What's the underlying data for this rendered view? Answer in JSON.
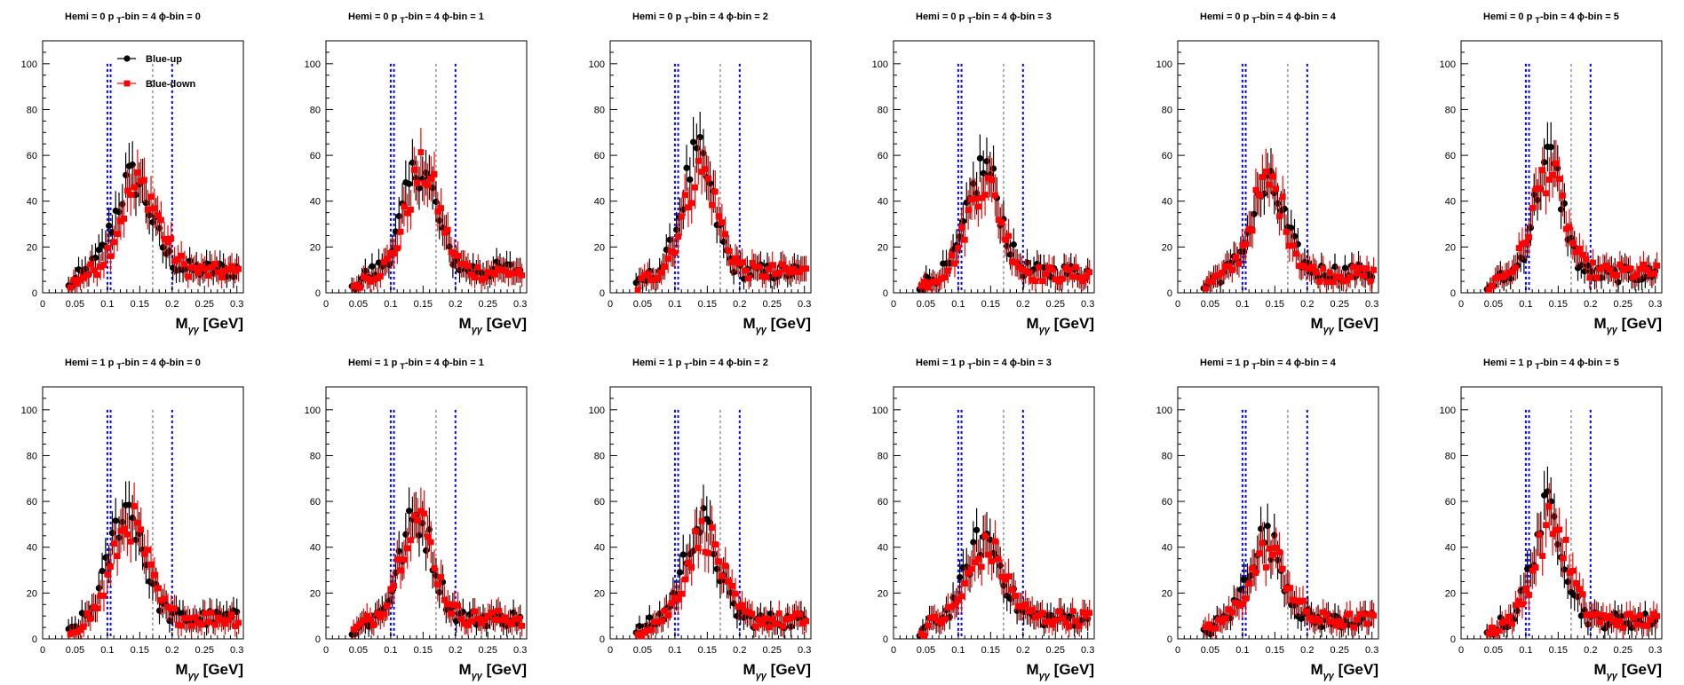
{
  "figure": {
    "x_label_main": "M",
    "x_label_sub": "γγ",
    "x_label_unit": " [GeV]",
    "legend": [
      {
        "name": "Blue-up",
        "marker": "circle",
        "color": "#000000"
      },
      {
        "name": "Blue-down",
        "marker": "square",
        "color": "#ff0000"
      }
    ],
    "grid": false
  },
  "chart_data": [
    {
      "type": "scatter",
      "title": "Hemi = 0 p_T-bin = 4 ϕ-bin = 0",
      "xlim": [
        0,
        0.31
      ],
      "ylim": [
        0,
        110
      ],
      "xticks": [
        "0",
        "0.05",
        "0.1",
        "0.15",
        "0.2",
        "0.25",
        "0.3"
      ],
      "yticks": [
        "0",
        "20",
        "40",
        "60",
        "80",
        "100"
      ],
      "xlabel": "Mγγ [GeV]",
      "vlines": [
        {
          "x": 0.1,
          "color": "blue"
        },
        {
          "x": 0.105,
          "color": "blue"
        },
        {
          "x": 0.17,
          "color": "gray"
        },
        {
          "x": 0.2,
          "color": "blue"
        }
      ],
      "legend": true,
      "series": [
        {
          "name": "Blue-up",
          "peak": 0.14,
          "height": 40,
          "base": 10,
          "width": 0.028
        },
        {
          "name": "Blue-down",
          "peak": 0.15,
          "height": 38,
          "base": 9,
          "width": 0.03
        }
      ]
    },
    {
      "type": "scatter",
      "title": "Hemi = 0 p_T-bin = 4 ϕ-bin = 1",
      "xlim": [
        0,
        0.31
      ],
      "ylim": [
        0,
        110
      ],
      "xticks": [
        "0",
        "0.05",
        "0.1",
        "0.15",
        "0.2",
        "0.25",
        "0.3"
      ],
      "yticks": [
        "0",
        "20",
        "40",
        "60",
        "80",
        "100"
      ],
      "xlabel": "Mγγ [GeV]",
      "vlines": [
        {
          "x": 0.1,
          "color": "blue"
        },
        {
          "x": 0.105,
          "color": "blue"
        },
        {
          "x": 0.17,
          "color": "gray"
        },
        {
          "x": 0.2,
          "color": "blue"
        }
      ],
      "legend": false,
      "series": [
        {
          "name": "Blue-up",
          "peak": 0.145,
          "height": 45,
          "base": 10,
          "width": 0.025
        },
        {
          "name": "Blue-down",
          "peak": 0.15,
          "height": 44,
          "base": 9,
          "width": 0.026
        }
      ]
    },
    {
      "type": "scatter",
      "title": "Hemi = 0 p_T-bin = 4 ϕ-bin = 2",
      "xlim": [
        0,
        0.31
      ],
      "ylim": [
        0,
        110
      ],
      "xticks": [
        "0",
        "0.05",
        "0.1",
        "0.15",
        "0.2",
        "0.25",
        "0.3"
      ],
      "yticks": [
        "0",
        "20",
        "40",
        "60",
        "80",
        "100"
      ],
      "xlabel": "Mγγ [GeV]",
      "vlines": [
        {
          "x": 0.1,
          "color": "blue"
        },
        {
          "x": 0.105,
          "color": "blue"
        },
        {
          "x": 0.17,
          "color": "gray"
        },
        {
          "x": 0.2,
          "color": "blue"
        }
      ],
      "legend": false,
      "series": [
        {
          "name": "Blue-up",
          "peak": 0.135,
          "height": 50,
          "base": 9,
          "width": 0.024
        },
        {
          "name": "Blue-down",
          "peak": 0.14,
          "height": 44,
          "base": 9,
          "width": 0.026
        }
      ]
    },
    {
      "type": "scatter",
      "title": "Hemi = 0 p_T-bin = 4 ϕ-bin = 3",
      "xlim": [
        0,
        0.31
      ],
      "ylim": [
        0,
        110
      ],
      "xticks": [
        "0",
        "0.05",
        "0.1",
        "0.15",
        "0.2",
        "0.25",
        "0.3"
      ],
      "yticks": [
        "0",
        "20",
        "40",
        "60",
        "80",
        "100"
      ],
      "xlabel": "Mγγ [GeV]",
      "vlines": [
        {
          "x": 0.1,
          "color": "blue"
        },
        {
          "x": 0.105,
          "color": "blue"
        },
        {
          "x": 0.17,
          "color": "gray"
        },
        {
          "x": 0.2,
          "color": "blue"
        }
      ],
      "legend": false,
      "series": [
        {
          "name": "Blue-up",
          "peak": 0.14,
          "height": 46,
          "base": 9,
          "width": 0.024
        },
        {
          "name": "Blue-down",
          "peak": 0.14,
          "height": 40,
          "base": 8,
          "width": 0.026
        }
      ]
    },
    {
      "type": "scatter",
      "title": "Hemi = 0 p_T-bin = 4 ϕ-bin = 4",
      "xlim": [
        0,
        0.31
      ],
      "ylim": [
        0,
        110
      ],
      "xticks": [
        "0",
        "0.05",
        "0.1",
        "0.15",
        "0.2",
        "0.25",
        "0.3"
      ],
      "yticks": [
        "0",
        "20",
        "40",
        "60",
        "80",
        "100"
      ],
      "xlabel": "Mγγ [GeV]",
      "vlines": [
        {
          "x": 0.1,
          "color": "blue"
        },
        {
          "x": 0.105,
          "color": "blue"
        },
        {
          "x": 0.17,
          "color": "gray"
        },
        {
          "x": 0.2,
          "color": "blue"
        }
      ],
      "legend": false,
      "series": [
        {
          "name": "Blue-up",
          "peak": 0.14,
          "height": 37,
          "base": 9,
          "width": 0.026
        },
        {
          "name": "Blue-down",
          "peak": 0.14,
          "height": 40,
          "base": 8,
          "width": 0.026
        }
      ]
    },
    {
      "type": "scatter",
      "title": "Hemi = 0 p_T-bin = 4 ϕ-bin = 5",
      "xlim": [
        0,
        0.31
      ],
      "ylim": [
        0,
        110
      ],
      "xticks": [
        "0",
        "0.05",
        "0.1",
        "0.15",
        "0.2",
        "0.25",
        "0.3"
      ],
      "yticks": [
        "0",
        "20",
        "40",
        "60",
        "80",
        "100"
      ],
      "xlabel": "Mγγ [GeV]",
      "vlines": [
        {
          "x": 0.1,
          "color": "blue"
        },
        {
          "x": 0.105,
          "color": "blue"
        },
        {
          "x": 0.17,
          "color": "gray"
        },
        {
          "x": 0.2,
          "color": "blue"
        }
      ],
      "legend": false,
      "series": [
        {
          "name": "Blue-up",
          "peak": 0.135,
          "height": 50,
          "base": 8,
          "width": 0.022
        },
        {
          "name": "Blue-down",
          "peak": 0.135,
          "height": 44,
          "base": 9,
          "width": 0.024
        }
      ]
    },
    {
      "type": "scatter",
      "title": "Hemi = 1 p_T-bin = 4 ϕ-bin = 0",
      "xlim": [
        0,
        0.31
      ],
      "ylim": [
        0,
        110
      ],
      "xticks": [
        "0",
        "0.05",
        "0.1",
        "0.15",
        "0.2",
        "0.25",
        "0.3"
      ],
      "yticks": [
        "0",
        "20",
        "40",
        "60",
        "80",
        "100"
      ],
      "xlabel": "Mγγ [GeV]",
      "vlines": [
        {
          "x": 0.1,
          "color": "blue"
        },
        {
          "x": 0.105,
          "color": "blue"
        },
        {
          "x": 0.17,
          "color": "gray"
        },
        {
          "x": 0.2,
          "color": "blue"
        }
      ],
      "legend": false,
      "series": [
        {
          "name": "Blue-up",
          "peak": 0.13,
          "height": 48,
          "base": 9,
          "width": 0.026
        },
        {
          "name": "Blue-down",
          "peak": 0.135,
          "height": 42,
          "base": 9,
          "width": 0.026
        }
      ]
    },
    {
      "type": "scatter",
      "title": "Hemi = 1 p_T-bin = 4 ϕ-bin = 1",
      "xlim": [
        0,
        0.31
      ],
      "ylim": [
        0,
        110
      ],
      "xticks": [
        "0",
        "0.05",
        "0.1",
        "0.15",
        "0.2",
        "0.25",
        "0.3"
      ],
      "yticks": [
        "0",
        "20",
        "40",
        "60",
        "80",
        "100"
      ],
      "xlabel": "Mγγ [GeV]",
      "vlines": [
        {
          "x": 0.1,
          "color": "blue"
        },
        {
          "x": 0.105,
          "color": "blue"
        },
        {
          "x": 0.17,
          "color": "gray"
        },
        {
          "x": 0.2,
          "color": "blue"
        }
      ],
      "legend": false,
      "series": [
        {
          "name": "Blue-up",
          "peak": 0.14,
          "height": 44,
          "base": 9,
          "width": 0.025
        },
        {
          "name": "Blue-down",
          "peak": 0.14,
          "height": 44,
          "base": 9,
          "width": 0.026
        }
      ]
    },
    {
      "type": "scatter",
      "title": "Hemi = 1 p_T-bin = 4 ϕ-bin = 2",
      "xlim": [
        0,
        0.31
      ],
      "ylim": [
        0,
        110
      ],
      "xticks": [
        "0",
        "0.05",
        "0.1",
        "0.15",
        "0.2",
        "0.25",
        "0.3"
      ],
      "yticks": [
        "0",
        "20",
        "40",
        "60",
        "80",
        "100"
      ],
      "xlabel": "Mγγ [GeV]",
      "vlines": [
        {
          "x": 0.1,
          "color": "blue"
        },
        {
          "x": 0.105,
          "color": "blue"
        },
        {
          "x": 0.17,
          "color": "gray"
        },
        {
          "x": 0.2,
          "color": "blue"
        }
      ],
      "legend": false,
      "series": [
        {
          "name": "Blue-up",
          "peak": 0.14,
          "height": 42,
          "base": 8,
          "width": 0.026
        },
        {
          "name": "Blue-down",
          "peak": 0.145,
          "height": 38,
          "base": 8,
          "width": 0.027
        }
      ]
    },
    {
      "type": "scatter",
      "title": "Hemi = 1 p_T-bin = 4 ϕ-bin = 3",
      "xlim": [
        0,
        0.31
      ],
      "ylim": [
        0,
        110
      ],
      "xticks": [
        "0",
        "0.05",
        "0.1",
        "0.15",
        "0.2",
        "0.25",
        "0.3"
      ],
      "yticks": [
        "0",
        "20",
        "40",
        "60",
        "80",
        "100"
      ],
      "xlabel": "Mγγ [GeV]",
      "vlines": [
        {
          "x": 0.1,
          "color": "blue"
        },
        {
          "x": 0.105,
          "color": "blue"
        },
        {
          "x": 0.17,
          "color": "gray"
        },
        {
          "x": 0.2,
          "color": "blue"
        }
      ],
      "legend": false,
      "series": [
        {
          "name": "Blue-up",
          "peak": 0.14,
          "height": 35,
          "base": 9,
          "width": 0.027
        },
        {
          "name": "Blue-down",
          "peak": 0.145,
          "height": 30,
          "base": 9,
          "width": 0.028
        }
      ]
    },
    {
      "type": "scatter",
      "title": "Hemi = 1 p_T-bin = 4 ϕ-bin = 4",
      "xlim": [
        0,
        0.31
      ],
      "ylim": [
        0,
        110
      ],
      "xticks": [
        "0",
        "0.05",
        "0.1",
        "0.15",
        "0.2",
        "0.25",
        "0.3"
      ],
      "yticks": [
        "0",
        "20",
        "40",
        "60",
        "80",
        "100"
      ],
      "xlabel": "Mγγ [GeV]",
      "vlines": [
        {
          "x": 0.1,
          "color": "blue"
        },
        {
          "x": 0.105,
          "color": "blue"
        },
        {
          "x": 0.17,
          "color": "gray"
        },
        {
          "x": 0.2,
          "color": "blue"
        }
      ],
      "legend": false,
      "series": [
        {
          "name": "Blue-up",
          "peak": 0.135,
          "height": 36,
          "base": 8,
          "width": 0.026
        },
        {
          "name": "Blue-down",
          "peak": 0.14,
          "height": 30,
          "base": 8,
          "width": 0.028
        }
      ]
    },
    {
      "type": "scatter",
      "title": "Hemi = 1 p_T-bin = 4 ϕ-bin = 5",
      "xlim": [
        0,
        0.31
      ],
      "ylim": [
        0,
        110
      ],
      "xticks": [
        "0",
        "0.05",
        "0.1",
        "0.15",
        "0.2",
        "0.25",
        "0.3"
      ],
      "yticks": [
        "0",
        "20",
        "40",
        "60",
        "80",
        "100"
      ],
      "xlabel": "Mγγ [GeV]",
      "vlines": [
        {
          "x": 0.1,
          "color": "blue"
        },
        {
          "x": 0.105,
          "color": "blue"
        },
        {
          "x": 0.17,
          "color": "gray"
        },
        {
          "x": 0.2,
          "color": "blue"
        }
      ],
      "legend": false,
      "series": [
        {
          "name": "Blue-up",
          "peak": 0.135,
          "height": 48,
          "base": 8,
          "width": 0.024
        },
        {
          "name": "Blue-down",
          "peak": 0.14,
          "height": 42,
          "base": 8,
          "width": 0.026
        }
      ]
    }
  ]
}
